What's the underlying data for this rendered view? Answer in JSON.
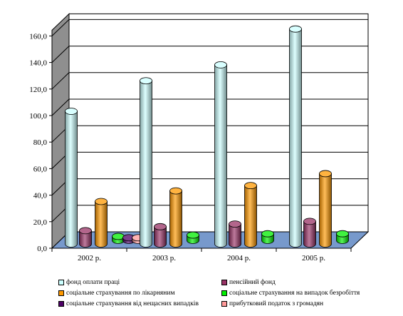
{
  "chart_data": {
    "type": "bar",
    "categories": [
      "2002 р.",
      "2003 р.",
      "2004 р.",
      "2005 р."
    ],
    "series": [
      {
        "name": "фонд оплати праці",
        "values": [
          100,
          123,
          135,
          162
        ],
        "color": "#ccffff"
      },
      {
        "name": "пенсійний фонд",
        "values": [
          10,
          13,
          15,
          17
        ],
        "color": "#993366"
      },
      {
        "name": "соціальне страхування по лікарняним",
        "values": [
          32,
          40,
          44,
          53
        ],
        "color": "#ff9900"
      },
      {
        "name": "соціальне страхування на випадок безробіття",
        "values": [
          3,
          4,
          5,
          5
        ],
        "color": "#00ee00"
      },
      {
        "name": "соціальне страхування від нещасних випадків",
        "values": [
          2,
          0,
          0,
          0
        ],
        "color": "#4d0066"
      },
      {
        "name": "прибутковий податок з громадян",
        "values": [
          2,
          0,
          0,
          0
        ],
        "color": "#ff9999"
      }
    ],
    "y_ticks": [
      "0,0",
      "20,0",
      "40,0",
      "60,0",
      "80,0",
      "100,0",
      "120,0",
      "140,0",
      "160,0"
    ],
    "ylim": [
      0,
      160
    ],
    "grid": true,
    "legend": "bottom",
    "wall_color": "#8f8f8f",
    "floor_color": "#7799cc"
  }
}
